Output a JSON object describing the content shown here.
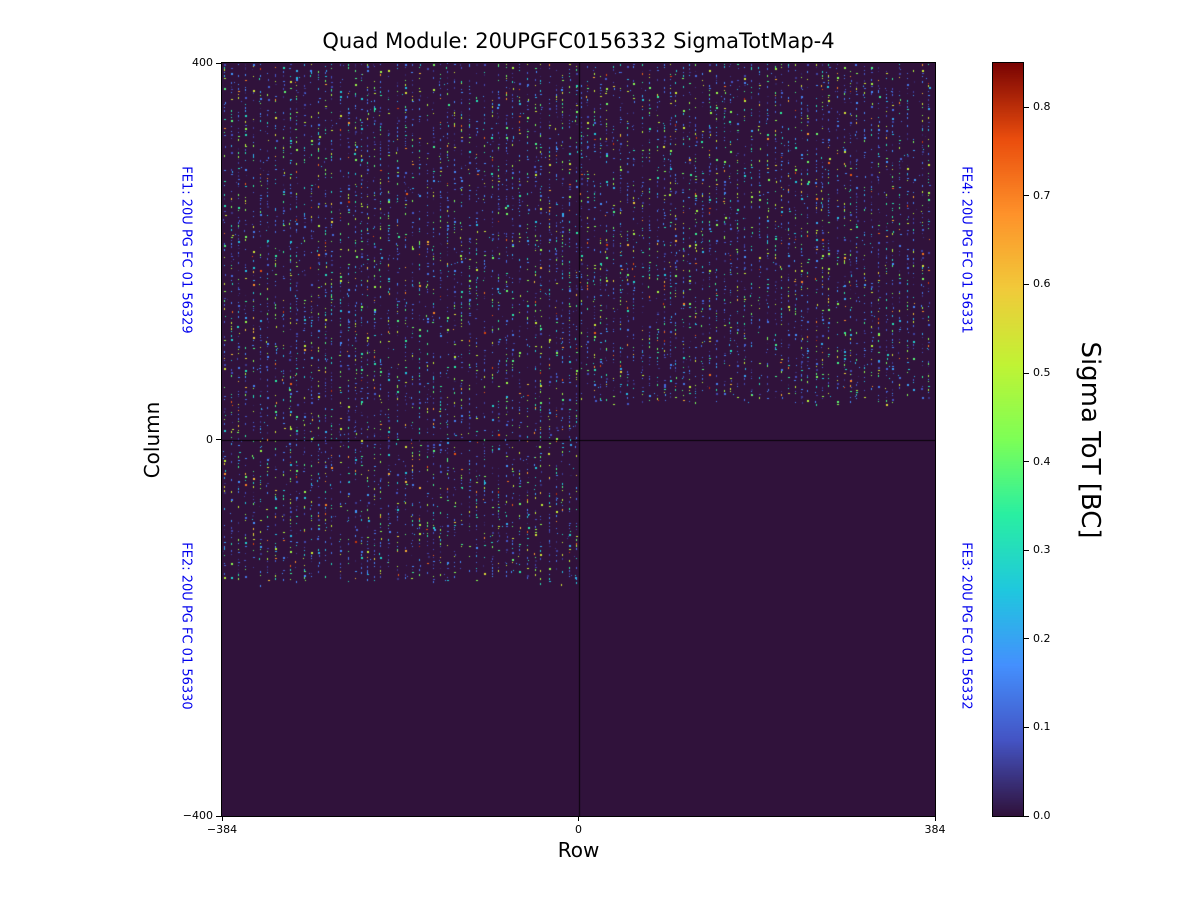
{
  "title": "Quad Module: 20UPGFC0156332 SigmaTotMap-4",
  "axes": {
    "xlabel": "Row",
    "ylabel": "Column",
    "xticks": [
      {
        "label": "−384",
        "frac": 0.0
      },
      {
        "label": "0",
        "frac": 0.5
      },
      {
        "label": "384",
        "frac": 1.0
      }
    ],
    "yticks": [
      {
        "label": "400",
        "frac": 0.0
      },
      {
        "label": "0",
        "frac": 0.5
      },
      {
        "label": "−400",
        "frac": 1.0
      }
    ]
  },
  "quadrant_labels": {
    "color": "#0000ee",
    "fe1": "FE1: 20U PG FC 01 56329",
    "fe2": "FE2: 20U PG FC 01 56330",
    "fe4": "FE4: 20U PG FC 01 56331",
    "fe3": "FE3: 20U PG FC 01 56332"
  },
  "colorbar": {
    "label": "Sigma ToT [BC]",
    "vmin": 0.0,
    "vmax": 0.85,
    "ticks": [
      {
        "label": "0.8",
        "value": 0.8
      },
      {
        "label": "0.7",
        "value": 0.7
      },
      {
        "label": "0.6",
        "value": 0.6
      },
      {
        "label": "0.5",
        "value": 0.5
      },
      {
        "label": "0.4",
        "value": 0.4
      },
      {
        "label": "0.3",
        "value": 0.3
      },
      {
        "label": "0.2",
        "value": 0.2
      },
      {
        "label": "0.1",
        "value": 0.1
      },
      {
        "label": "0.0",
        "value": 0.0
      }
    ]
  },
  "chart_data": {
    "type": "heatmap",
    "title": "Quad Module: 20UPGFC0156332 SigmaTotMap-4",
    "xlabel": "Row",
    "ylabel": "Column",
    "xlim": [
      -384,
      384
    ],
    "ylim": [
      -400,
      400
    ],
    "grid": false,
    "colormap": "turbo",
    "value_label": "Sigma ToT [BC]",
    "value_range": [
      0.0,
      0.85
    ],
    "background_value": 0.0,
    "quadrants": [
      {
        "name": "FE1",
        "chip": "20U PG FC 01 56329",
        "rows": [
          -384,
          0
        ],
        "cols": [
          0,
          400
        ],
        "content": "speckle noise"
      },
      {
        "name": "FE2",
        "chip": "20U PG FC 01 56330",
        "rows": [
          -384,
          0
        ],
        "cols": [
          -400,
          0
        ],
        "content": "speckle noise above col ≈ -150, empty below"
      },
      {
        "name": "FE3",
        "chip": "20U PG FC 01 56332",
        "rows": [
          0,
          384
        ],
        "cols": [
          -400,
          0
        ],
        "content": "empty"
      },
      {
        "name": "FE4",
        "chip": "20U PG FC 01 56331",
        "rows": [
          0,
          384
        ],
        "cols": [
          0,
          400
        ],
        "content": "speckle noise above col ≈ 40, empty between col 0 and 40"
      }
    ],
    "noise_regions": [
      {
        "rows": [
          -384,
          0
        ],
        "cols": [
          -150,
          400
        ]
      },
      {
        "rows": [
          0,
          384
        ],
        "cols": [
          40,
          400
        ]
      }
    ],
    "noise_description": "dense vertical dotted stripes of random sigma values, mostly 0.02-0.55 BC with occasional values up to ~0.8 BC, on a uniform background of 0.0 BC",
    "divider_lines": {
      "row": 0,
      "col": 0
    }
  }
}
